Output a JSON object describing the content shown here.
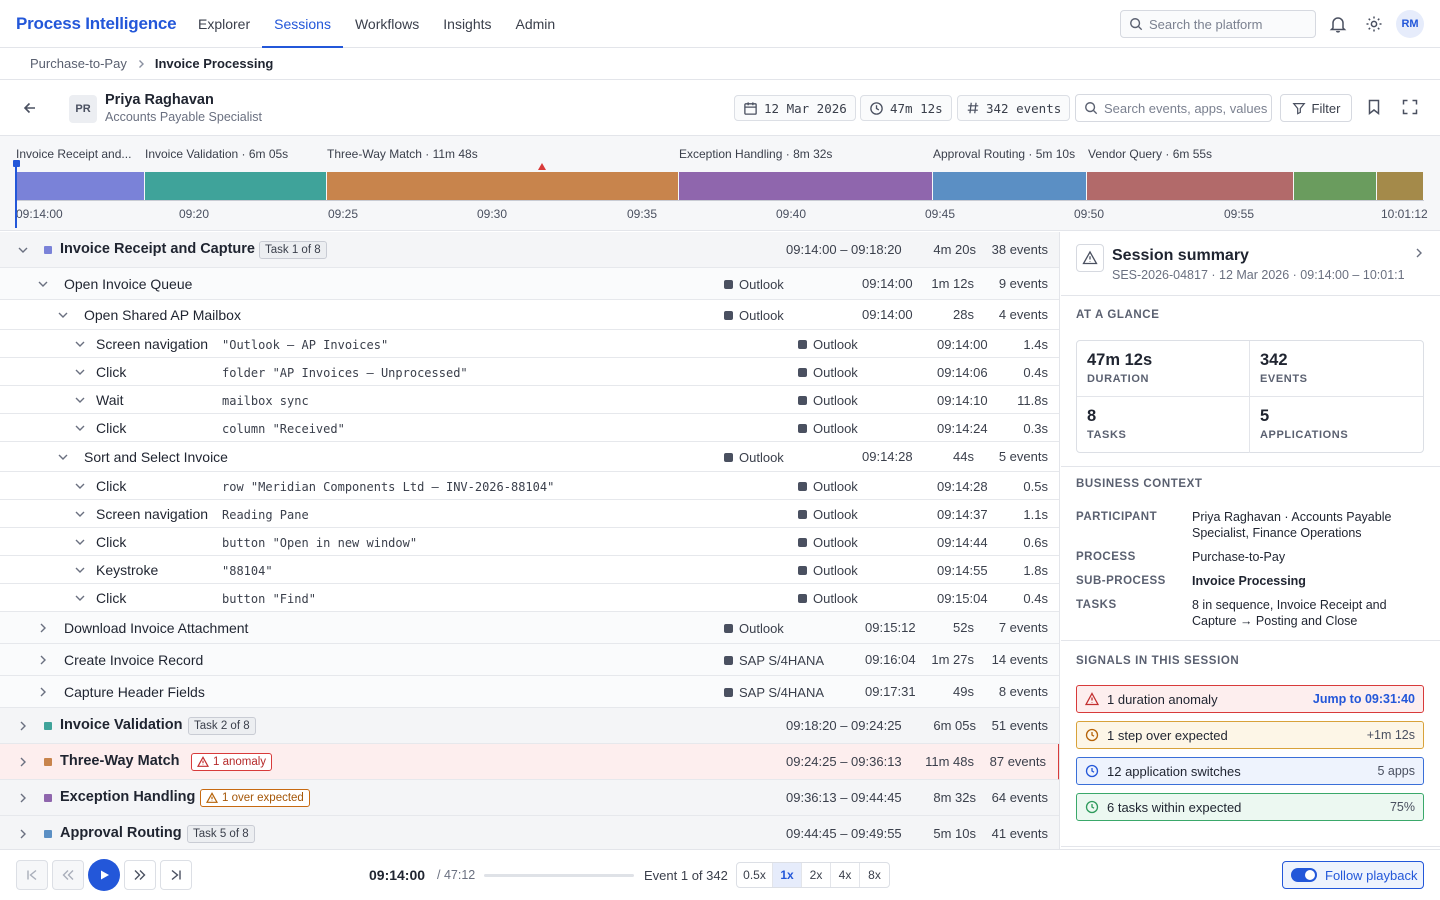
{
  "app": {
    "brand": "Process Intelligence"
  },
  "nav": {
    "tabs": [
      "Explorer",
      "Sessions",
      "Workflows",
      "Insights",
      "Admin"
    ],
    "active": "Sessions"
  },
  "top": {
    "search_placeholder": "Search the platform",
    "avatar": "RM"
  },
  "breadcrumb": [
    "Purchase-to-Pay",
    "Invoice Processing"
  ],
  "participant": {
    "initials": "PR",
    "name": "Priya Raghavan",
    "role": "Accounts Payable Specialist"
  },
  "session_chips": {
    "date": "12 Mar 2026",
    "duration": "47m 12s",
    "events": "342 events"
  },
  "event_search_placeholder": "Search events, apps, values",
  "filter_label": "Filter",
  "timeline": {
    "segment_labels": [
      "Invoice Receipt and...",
      "Invoice Validation · 6m 05s",
      "Three-Way Match · 11m 48s",
      "Exception Handling · 8m 32s",
      "Approval Routing · 5m 10s",
      "Vendor Query · 6m 55s"
    ],
    "ticks": [
      "09:14:00",
      "09:20",
      "09:25",
      "09:30",
      "09:35",
      "09:40",
      "09:45",
      "09:50",
      "09:55",
      "10:01:12"
    ],
    "colors": [
      "#7a82d8",
      "#3fa39a",
      "#c8844c",
      "#8f66ad",
      "#5b8fc4",
      "#b26a6a",
      "#6a9c5e",
      "#a48a4a"
    ]
  },
  "tasks": [
    {
      "name": "Invoice Receipt and Capture",
      "badge": "Task 1 of 8",
      "range": "09:14:00 – 09:18:20",
      "duration": "4m 20s",
      "events": "38 events",
      "color": "#7a82d8"
    },
    {
      "name": "Invoice Validation",
      "badge": "Task 2 of 8",
      "range": "09:18:20 – 09:24:25",
      "duration": "6m 05s",
      "events": "51 events",
      "color": "#3fa39a"
    },
    {
      "name": "Three-Way Match",
      "badge": "1 anomaly",
      "range": "09:24:25 – 09:36:13",
      "duration": "11m 48s",
      "events": "87 events",
      "color": "#c8844c"
    },
    {
      "name": "Exception Handling",
      "badge": "1 over expected",
      "range": "09:36:13 – 09:44:45",
      "duration": "8m 32s",
      "events": "64 events",
      "color": "#8f66ad"
    },
    {
      "name": "Approval Routing",
      "badge": "Task 5 of 8",
      "range": "09:44:45 – 09:49:55",
      "duration": "5m 10s",
      "events": "41 events",
      "color": "#5b8fc4"
    }
  ],
  "steps": [
    {
      "name": "Open Invoice Queue",
      "app": "Outlook",
      "time": "09:14:00",
      "duration": "1m 12s",
      "events": "9 events"
    },
    {
      "name": "Open Shared AP Mailbox",
      "app": "Outlook",
      "time": "09:14:00",
      "duration": "28s",
      "events": "4 events"
    },
    {
      "name": "Sort and Select Invoice",
      "app": "Outlook",
      "time": "09:14:28",
      "duration": "44s",
      "events": "5 events"
    },
    {
      "name": "Download Invoice Attachment",
      "app": "Outlook",
      "time": "09:15:12",
      "duration": "52s",
      "events": "7 events"
    },
    {
      "name": "Create Invoice Record",
      "app": "SAP S/4HANA",
      "time": "09:16:04",
      "duration": "1m 27s",
      "events": "14 events"
    },
    {
      "name": "Capture Header Fields",
      "app": "SAP S/4HANA",
      "time": "09:17:31",
      "duration": "49s",
      "events": "8 events"
    }
  ],
  "events": [
    {
      "type": "Screen navigation",
      "detail": "\"Outlook — AP Invoices\"",
      "app": "Outlook",
      "time": "09:14:00",
      "duration": "1.4s"
    },
    {
      "type": "Click",
      "detail": "folder \"AP Invoices — Unprocessed\"",
      "app": "Outlook",
      "time": "09:14:06",
      "duration": "0.4s"
    },
    {
      "type": "Wait",
      "detail": "mailbox sync",
      "app": "Outlook",
      "time": "09:14:10",
      "duration": "11.8s"
    },
    {
      "type": "Click",
      "detail": "column \"Received\"",
      "app": "Outlook",
      "time": "09:14:24",
      "duration": "0.3s"
    },
    {
      "type": "Click",
      "detail": "row \"Meridian Components Ltd — INV-2026-88104\"",
      "app": "Outlook",
      "time": "09:14:28",
      "duration": "0.5s"
    },
    {
      "type": "Screen navigation",
      "detail": "Reading Pane",
      "app": "Outlook",
      "time": "09:14:37",
      "duration": "1.1s"
    },
    {
      "type": "Click",
      "detail": "button \"Open in new window\"",
      "app": "Outlook",
      "time": "09:14:44",
      "duration": "0.6s"
    },
    {
      "type": "Keystroke",
      "detail": "\"88104\"",
      "app": "Outlook",
      "time": "09:14:55",
      "duration": "1.8s"
    },
    {
      "type": "Click",
      "detail": "button \"Find\"",
      "app": "Outlook",
      "time": "09:15:04",
      "duration": "0.4s"
    }
  ],
  "summary": {
    "title": "Session summary",
    "subtitle": "SES-2026-04817 · 12 Mar 2026 · 09:14:00 – 10:01:12",
    "glance_heading": "AT A GLANCE",
    "glance": [
      {
        "value": "47m 12s",
        "label": "DURATION"
      },
      {
        "value": "342",
        "label": "EVENTS"
      },
      {
        "value": "8",
        "label": "TASKS"
      },
      {
        "value": "5",
        "label": "APPLICATIONS"
      }
    ],
    "context_heading": "BUSINESS CONTEXT",
    "context": [
      {
        "key": "PARTICIPANT",
        "value": "Priya Raghavan · Accounts Payable Specialist, Finance Operations"
      },
      {
        "key": "PROCESS",
        "value": "Purchase-to-Pay"
      },
      {
        "key": "SUB-PROCESS",
        "value": "Invoice Processing"
      },
      {
        "key": "TASKS",
        "value": "8 in sequence, Invoice Receipt and Capture → Posting and Close"
      }
    ],
    "signals_heading": "SIGNALS IN THIS SESSION",
    "signals": [
      {
        "text": "1 duration anomaly",
        "right": "Jump to 09:31:40"
      },
      {
        "text": "1 step over expected",
        "right": "+1m 12s"
      },
      {
        "text": "12 application switches",
        "right": "5 apps"
      },
      {
        "text": "6 tasks within expected",
        "right": "75%"
      }
    ]
  },
  "playback": {
    "current": "09:14:00",
    "total": "/ 47:12",
    "event_counter": "Event 1 of 342",
    "progress": 0.0,
    "speeds": [
      "0.5x",
      "1x",
      "2x",
      "4x",
      "8x"
    ],
    "active_speed": "1x",
    "follow_label": "Follow playback",
    "follow_on": true
  }
}
